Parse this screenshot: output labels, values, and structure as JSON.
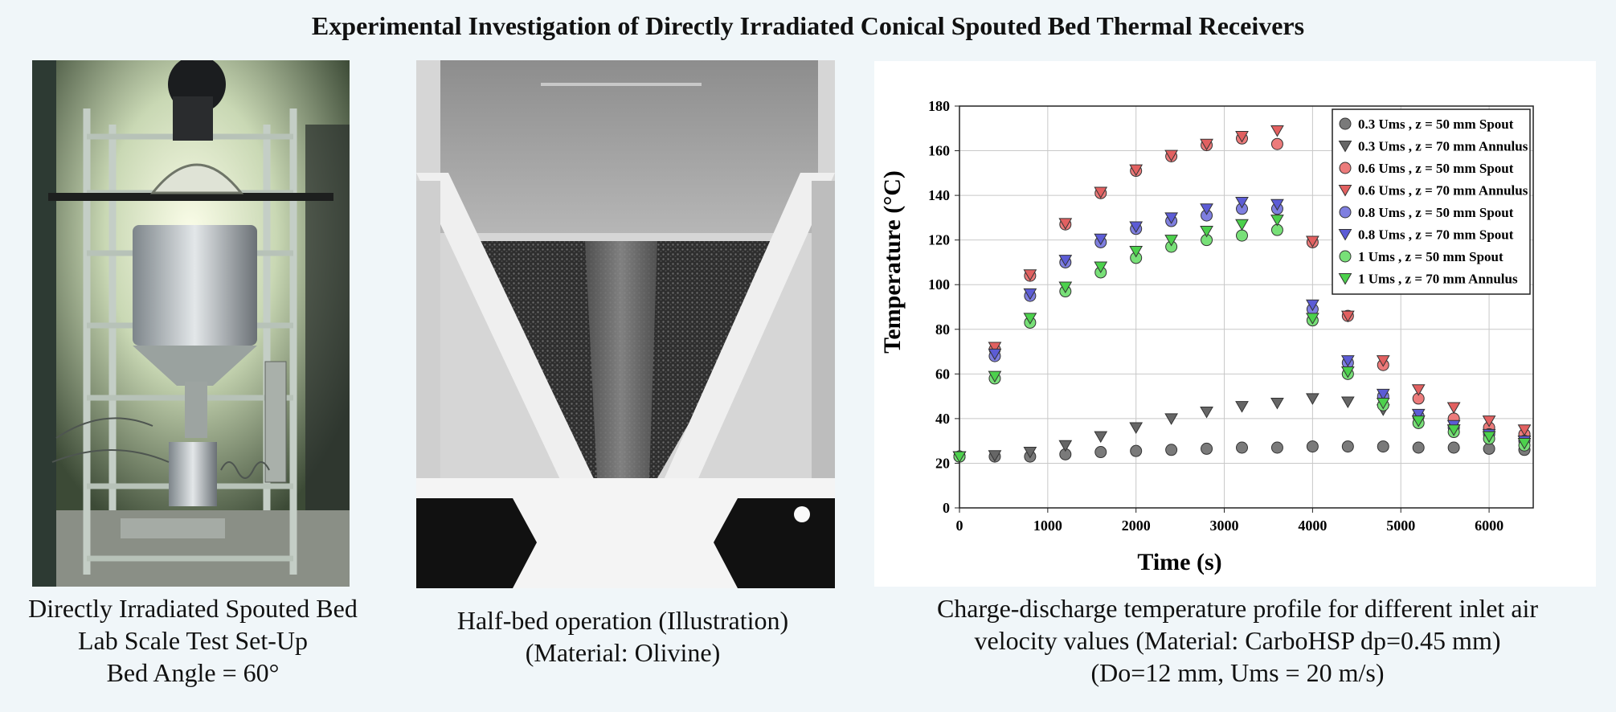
{
  "title": "Experimental Investigation of Directly Irradiated Conical Spouted Bed Thermal Receivers",
  "captions": {
    "left": [
      "Directly Irradiated Spouted Bed",
      "Lab Scale Test Set-Up",
      "Bed Angle = 60°"
    ],
    "middle": [
      "Half-bed operation (Illustration)",
      "(Material: Olivine)"
    ],
    "right": [
      "Charge-discharge temperature profile for different inlet air",
      "velocity values (Material: CarboHSP dp=0.45 mm)",
      "(Do=12 mm, Ums = 20 m/s)"
    ]
  },
  "chart_data": {
    "type": "scatter",
    "xlabel": "Time (s)",
    "ylabel": "Temperature (°C)",
    "xlim": [
      0,
      6500
    ],
    "ylim": [
      0,
      180
    ],
    "xticks": [
      0,
      1000,
      2000,
      3000,
      4000,
      5000,
      6000
    ],
    "yticks": [
      0,
      20,
      40,
      60,
      80,
      100,
      120,
      140,
      160,
      180
    ],
    "grid": true,
    "legend_position": "top-right",
    "series": [
      {
        "name": "0.3 Ums , z = 50 mm Spout",
        "marker": "circle",
        "color": "#7a7a7a",
        "x": [
          0,
          400,
          800,
          1200,
          1600,
          2000,
          2400,
          2800,
          3200,
          3600,
          4000,
          4400,
          4800,
          5200,
          5600,
          6000,
          6400
        ],
        "y": [
          23,
          23,
          23,
          24,
          25,
          25.5,
          26,
          26.5,
          27,
          27,
          27.5,
          27.5,
          27.5,
          27,
          27,
          26.5,
          26
        ]
      },
      {
        "name": "0.3 Ums , z = 70 mm Annulus",
        "marker": "triangle-down",
        "color": "#666666",
        "x": [
          0,
          400,
          800,
          1200,
          1600,
          2000,
          2400,
          2800,
          3200,
          3600,
          4000,
          4400,
          4800,
          5200,
          5600,
          6000,
          6400
        ],
        "y": [
          23,
          23.5,
          25,
          28,
          32,
          36,
          40,
          43,
          45.5,
          47,
          49,
          47.5,
          44,
          39,
          35,
          32,
          30
        ]
      },
      {
        "name": "0.6 Ums , z = 50 mm Spout",
        "marker": "circle",
        "color": "#ec7b7b",
        "x": [
          0,
          400,
          800,
          1200,
          1600,
          2000,
          2400,
          2800,
          3200,
          3600,
          4000,
          4400,
          4800,
          5200,
          5600,
          6000,
          6400
        ],
        "y": [
          23,
          71,
          104,
          127,
          141,
          151,
          157.5,
          162.5,
          165.5,
          163,
          119,
          86,
          64,
          49,
          40,
          36,
          33
        ]
      },
      {
        "name": "0.6 Ums , z = 70 mm Annulus",
        "marker": "triangle-down",
        "color": "#e26060",
        "x": [
          0,
          400,
          800,
          1200,
          1600,
          2000,
          2400,
          2800,
          3200,
          3600,
          4000,
          4400,
          4800,
          5200,
          5600,
          6000,
          6400
        ],
        "y": [
          23,
          72,
          104.5,
          127.5,
          141.5,
          151.5,
          158,
          163,
          166.5,
          169,
          119.5,
          86,
          66,
          53,
          45,
          39,
          35
        ]
      },
      {
        "name": "0.8 Ums , z = 50 mm Spout",
        "marker": "circle",
        "color": "#7f7fe0",
        "x": [
          0,
          400,
          800,
          1200,
          1600,
          2000,
          2400,
          2800,
          3200,
          3600,
          4000,
          4400,
          4800,
          5200,
          5600,
          6000,
          6400
        ],
        "y": [
          23,
          68,
          95,
          110,
          119,
          125,
          128.5,
          131,
          134,
          134,
          89,
          65,
          50,
          41,
          36,
          33,
          30
        ]
      },
      {
        "name": "0.8 Ums , z = 70 mm Spout",
        "marker": "triangle-down",
        "color": "#5c5cd6",
        "x": [
          0,
          400,
          800,
          1200,
          1600,
          2000,
          2400,
          2800,
          3200,
          3600,
          4000,
          4400,
          4800,
          5200,
          5600,
          6000,
          6400
        ],
        "y": [
          23,
          69,
          96,
          111,
          120.5,
          126,
          130,
          134,
          137,
          136,
          91,
          66,
          51,
          42,
          37,
          33,
          30
        ]
      },
      {
        "name": "1 Ums ,   z = 50 mm Spout",
        "marker": "circle",
        "color": "#78e078",
        "x": [
          0,
          400,
          800,
          1200,
          1600,
          2000,
          2400,
          2800,
          3200,
          3600,
          4000,
          4400,
          4800,
          5200,
          5600,
          6000,
          6400
        ],
        "y": [
          23,
          58,
          83,
          97,
          105.5,
          112,
          117,
          120,
          122,
          124.5,
          84,
          60,
          46,
          38,
          34,
          31,
          28
        ]
      },
      {
        "name": "1 Ums ,   z = 70 mm Annulus",
        "marker": "triangle-down",
        "color": "#4cd14c",
        "x": [
          0,
          400,
          800,
          1200,
          1600,
          2000,
          2400,
          2800,
          3200,
          3600,
          4000,
          4400,
          4800,
          5200,
          5600,
          6000,
          6400
        ],
        "y": [
          23,
          59,
          85,
          99,
          108,
          115,
          120,
          124,
          127,
          129,
          85,
          61,
          47,
          39,
          35,
          32,
          29
        ]
      }
    ]
  }
}
